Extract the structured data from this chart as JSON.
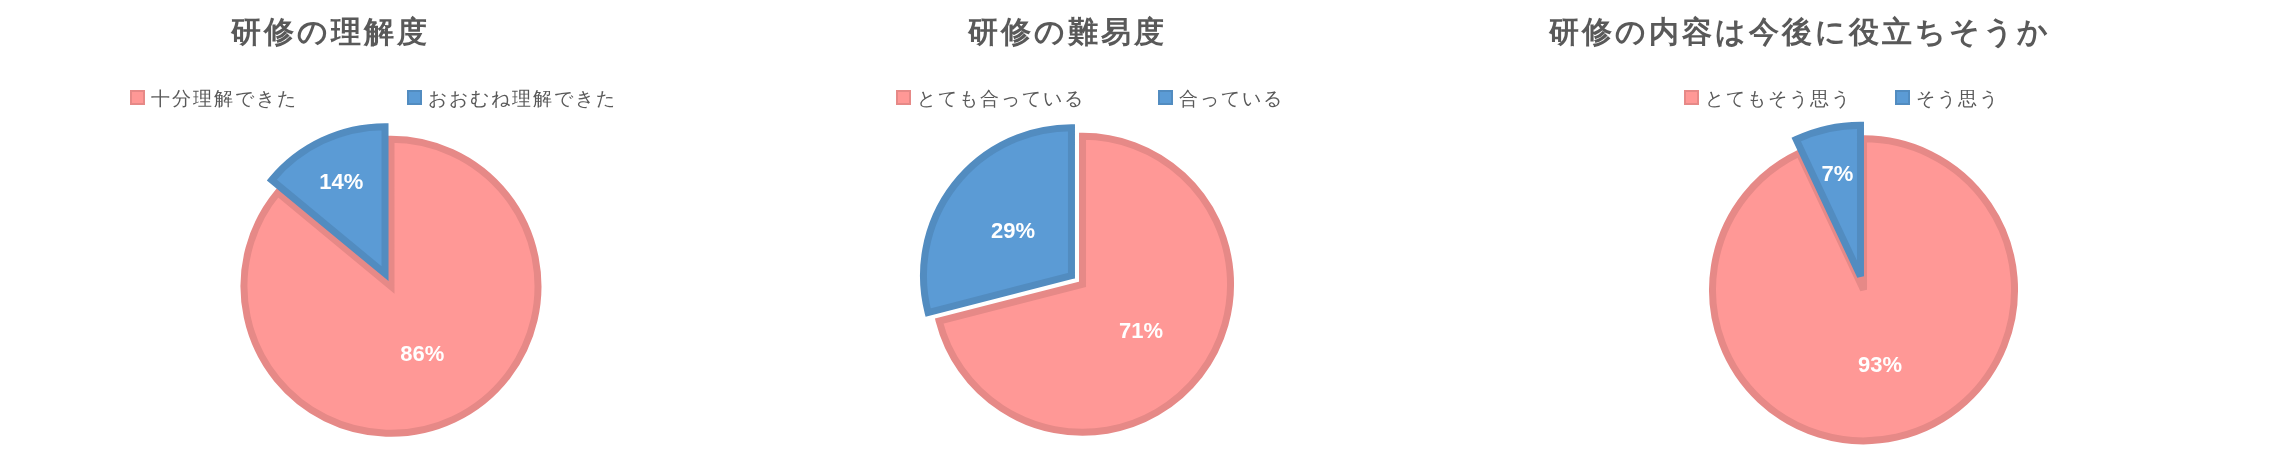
{
  "chart_data": [
    {
      "type": "pie",
      "title": "研修の理解度",
      "categories": [
        "十分理解できた",
        "おおむね理解できた"
      ],
      "values": [
        86,
        14
      ],
      "colors": [
        "#ff9896",
        "#5b9bd5"
      ],
      "value_labels": [
        "86%",
        "14%"
      ],
      "legend": "top"
    },
    {
      "type": "pie",
      "title": "研修の難易度",
      "categories": [
        "とても合っている",
        "合っている"
      ],
      "values": [
        71,
        29
      ],
      "colors": [
        "#ff9896",
        "#5b9bd5"
      ],
      "value_labels": [
        "71%",
        "29%"
      ],
      "legend": "top"
    },
    {
      "type": "pie",
      "title": "研修の内容は今後に役立ちそうか",
      "categories": [
        "とてもそう思う",
        "そう思う"
      ],
      "values": [
        93,
        7
      ],
      "colors": [
        "#ff9896",
        "#5b9bd5"
      ],
      "value_labels": [
        "93%",
        "7%"
      ],
      "legend": "top"
    }
  ]
}
